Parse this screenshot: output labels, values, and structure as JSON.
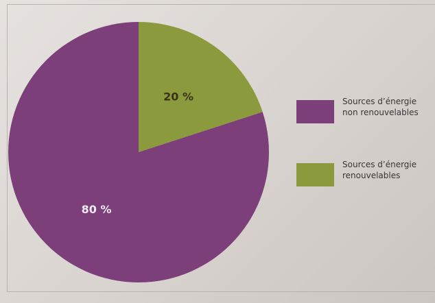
{
  "chart_data": {
    "type": "pie",
    "categories": [
      "Sources d’énergie\nnon renouvelables",
      "Sources d’énergie\nrenouvelables"
    ],
    "values": [
      80,
      20
    ],
    "labels": [
      "80 %",
      "20 %"
    ],
    "colors": [
      "#7c3f7a",
      "#8c9a3e"
    ],
    "label_colors": [
      "#f1eaf0",
      "#3a3218"
    ],
    "legend": "right",
    "title": ""
  }
}
